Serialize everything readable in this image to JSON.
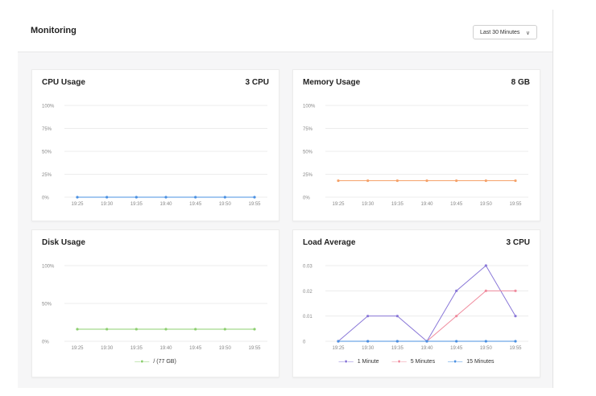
{
  "header": {
    "title": "Monitoring",
    "time_range": "Last 30 Minutes"
  },
  "cards": {
    "cpu": {
      "title": "CPU Usage",
      "meta": "3 CPU"
    },
    "memory": {
      "title": "Memory Usage",
      "meta": "8 GB"
    },
    "disk": {
      "title": "Disk Usage",
      "meta": ""
    },
    "load": {
      "title": "Load Average",
      "meta": "3 CPU"
    }
  },
  "colors": {
    "cpu": "#4a90e2",
    "memory": "#f5a36c",
    "disk": "#8ccf6f",
    "load_1": "#8a78d8",
    "load_5": "#f08c9e",
    "load_15": "#4a90e2"
  },
  "chart_data": [
    {
      "id": "cpu",
      "type": "line",
      "title": "CPU Usage",
      "x": [
        "19:25",
        "19:30",
        "19:35",
        "19:40",
        "19:45",
        "19:50",
        "19:55"
      ],
      "ylim": [
        0,
        100
      ],
      "y_ticks": [
        "0%",
        "25%",
        "50%",
        "75%",
        "100%"
      ],
      "y_tick_values": [
        0,
        25,
        50,
        75,
        100
      ],
      "series": [
        {
          "values": [
            0,
            0,
            0,
            0,
            0,
            0,
            0
          ],
          "color": "#4a90e2"
        }
      ],
      "grid": true
    },
    {
      "id": "memory",
      "type": "line",
      "title": "Memory Usage",
      "x": [
        "19:25",
        "19:30",
        "19:35",
        "19:40",
        "19:45",
        "19:50",
        "19:55"
      ],
      "ylim": [
        0,
        100
      ],
      "y_ticks": [
        "0%",
        "25%",
        "50%",
        "75%",
        "100%"
      ],
      "y_tick_values": [
        0,
        25,
        50,
        75,
        100
      ],
      "series": [
        {
          "values": [
            18,
            18,
            18,
            18,
            18,
            18,
            18
          ],
          "color": "#f5a36c"
        }
      ],
      "grid": true
    },
    {
      "id": "disk",
      "type": "line",
      "title": "Disk Usage",
      "x": [
        "19:25",
        "19:30",
        "19:35",
        "19:40",
        "19:45",
        "19:50",
        "19:55"
      ],
      "ylim": [
        0,
        100
      ],
      "y_ticks": [
        "0%",
        "50%",
        "100%"
      ],
      "y_tick_values": [
        0,
        50,
        100
      ],
      "series": [
        {
          "name": "/ (77 GB)",
          "values": [
            16,
            16,
            16,
            16,
            16,
            16,
            16
          ],
          "color": "#8ccf6f"
        }
      ],
      "grid": true,
      "legend": "bottom"
    },
    {
      "id": "load",
      "type": "line",
      "title": "Load Average",
      "x": [
        "19:25",
        "19:30",
        "19:35",
        "19:40",
        "19:45",
        "19:50",
        "19:55"
      ],
      "ylim": [
        0,
        0.03
      ],
      "y_ticks": [
        "0",
        "0.01",
        "0.02",
        "0.03"
      ],
      "y_tick_values": [
        0,
        0.01,
        0.02,
        0.03
      ],
      "series": [
        {
          "name": "1 Minute",
          "values": [
            0,
            0.01,
            0.01,
            0,
            0.02,
            0.03,
            0.01
          ],
          "color": "#8a78d8"
        },
        {
          "name": "5 Minutes",
          "values": [
            0,
            0,
            0,
            0,
            0.01,
            0.02,
            0.02
          ],
          "color": "#f08c9e"
        },
        {
          "name": "15 Minutes",
          "values": [
            0,
            0,
            0,
            0,
            0,
            0,
            0
          ],
          "color": "#4a90e2"
        }
      ],
      "grid": true,
      "legend": "bottom"
    }
  ]
}
